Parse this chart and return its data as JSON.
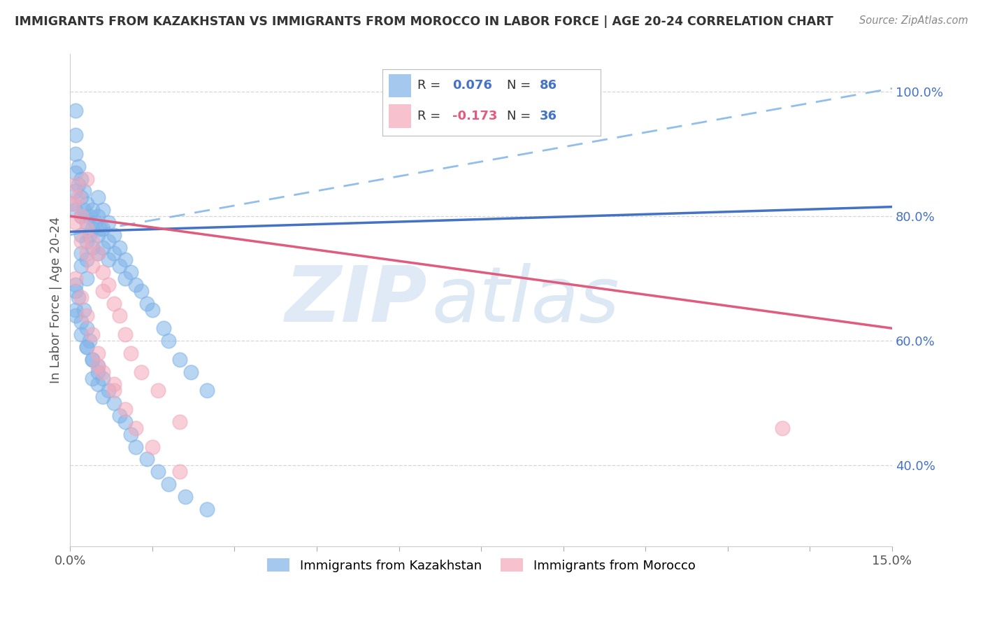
{
  "title": "IMMIGRANTS FROM KAZAKHSTAN VS IMMIGRANTS FROM MOROCCO IN LABOR FORCE | AGE 20-24 CORRELATION CHART",
  "source": "Source: ZipAtlas.com",
  "ylabel": "In Labor Force | Age 20-24",
  "xlim": [
    0.0,
    0.15
  ],
  "ylim": [
    0.27,
    1.06
  ],
  "ytick_positions": [
    0.4,
    0.6,
    0.8,
    1.0
  ],
  "ytick_labels": [
    "40.0%",
    "60.0%",
    "80.0%",
    "100.0%"
  ],
  "kaz_color": "#7FB3E8",
  "mor_color": "#F4A7B9",
  "kaz_line_color": "#4472C4",
  "mor_line_color": "#E05C7E",
  "dashed_line_color": "#7FB3E8",
  "r_value_color": "#4472C4",
  "n_value_color": "#4472C4",
  "r2_value_color": "#E05C7E",
  "n2_value_color": "#4472C4",
  "watermark_zip_color": "#C8D8F0",
  "watermark_atlas_color": "#A8C8E8",
  "background_color": "#FFFFFF",
  "kaz_line_x0": 0.0,
  "kaz_line_y0": 0.775,
  "kaz_line_x1": 0.15,
  "kaz_line_y1": 0.815,
  "mor_line_x0": 0.0,
  "mor_line_y0": 0.8,
  "mor_line_x1": 0.15,
  "mor_line_y1": 0.62,
  "dash_line_x0": 0.0,
  "dash_line_y0": 0.77,
  "dash_line_x1": 0.15,
  "dash_line_y1": 1.005,
  "kaz_x": [
    0.0005,
    0.001,
    0.001,
    0.001,
    0.001,
    0.001,
    0.001,
    0.0015,
    0.0015,
    0.002,
    0.002,
    0.002,
    0.002,
    0.002,
    0.002,
    0.0025,
    0.0025,
    0.003,
    0.003,
    0.003,
    0.003,
    0.003,
    0.0035,
    0.0035,
    0.004,
    0.004,
    0.004,
    0.0045,
    0.005,
    0.005,
    0.005,
    0.005,
    0.0055,
    0.006,
    0.006,
    0.006,
    0.007,
    0.007,
    0.007,
    0.008,
    0.008,
    0.009,
    0.009,
    0.01,
    0.01,
    0.011,
    0.012,
    0.013,
    0.014,
    0.015,
    0.017,
    0.018,
    0.02,
    0.022,
    0.025,
    0.001,
    0.001,
    0.0015,
    0.002,
    0.0025,
    0.003,
    0.003,
    0.0035,
    0.004,
    0.004,
    0.005,
    0.005,
    0.006,
    0.006,
    0.007,
    0.008,
    0.009,
    0.01,
    0.011,
    0.012,
    0.014,
    0.016,
    0.018,
    0.021,
    0.025,
    0.001,
    0.001,
    0.002,
    0.003,
    0.004,
    0.005
  ],
  "kaz_y": [
    0.82,
    0.97,
    0.93,
    0.9,
    0.87,
    0.84,
    0.81,
    0.88,
    0.85,
    0.86,
    0.83,
    0.8,
    0.77,
    0.74,
    0.72,
    0.84,
    0.81,
    0.82,
    0.79,
    0.76,
    0.73,
    0.7,
    0.8,
    0.77,
    0.81,
    0.78,
    0.75,
    0.79,
    0.83,
    0.8,
    0.77,
    0.74,
    0.78,
    0.81,
    0.78,
    0.75,
    0.79,
    0.76,
    0.73,
    0.77,
    0.74,
    0.75,
    0.72,
    0.73,
    0.7,
    0.71,
    0.69,
    0.68,
    0.66,
    0.65,
    0.62,
    0.6,
    0.57,
    0.55,
    0.52,
    0.69,
    0.65,
    0.67,
    0.63,
    0.65,
    0.62,
    0.59,
    0.6,
    0.57,
    0.54,
    0.56,
    0.53,
    0.54,
    0.51,
    0.52,
    0.5,
    0.48,
    0.47,
    0.45,
    0.43,
    0.41,
    0.39,
    0.37,
    0.35,
    0.33,
    0.68,
    0.64,
    0.61,
    0.59,
    0.57,
    0.55
  ],
  "mor_x": [
    0.0005,
    0.001,
    0.001,
    0.0015,
    0.002,
    0.002,
    0.003,
    0.003,
    0.004,
    0.004,
    0.005,
    0.006,
    0.006,
    0.007,
    0.008,
    0.009,
    0.01,
    0.011,
    0.013,
    0.016,
    0.02,
    0.001,
    0.002,
    0.003,
    0.004,
    0.005,
    0.006,
    0.008,
    0.01,
    0.012,
    0.015,
    0.02,
    0.003,
    0.005,
    0.008,
    0.13
  ],
  "mor_y": [
    0.82,
    0.85,
    0.79,
    0.83,
    0.8,
    0.76,
    0.78,
    0.74,
    0.76,
    0.72,
    0.74,
    0.71,
    0.68,
    0.69,
    0.66,
    0.64,
    0.61,
    0.58,
    0.55,
    0.52,
    0.47,
    0.7,
    0.67,
    0.64,
    0.61,
    0.58,
    0.55,
    0.52,
    0.49,
    0.46,
    0.43,
    0.39,
    0.86,
    0.56,
    0.53,
    0.46
  ]
}
